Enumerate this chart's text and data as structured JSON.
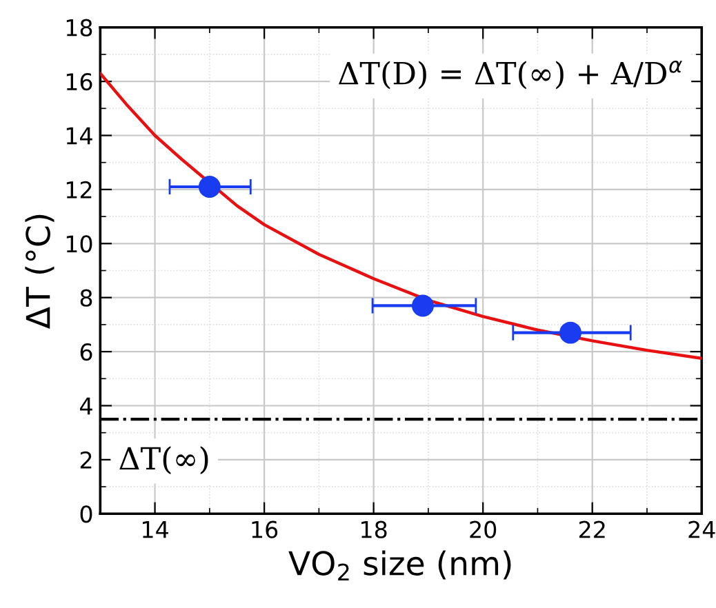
{
  "chart_data": {
    "type": "scatter",
    "xlabel": "VO$_{2}$ size (nm)",
    "ylabel": "ΔT (°C)",
    "xlim": [
      13,
      24
    ],
    "xticks": [
      14,
      16,
      18,
      20,
      22,
      24
    ],
    "ylim": [
      0,
      18
    ],
    "yticks": [
      0,
      2,
      4,
      6,
      8,
      10,
      12,
      14,
      16,
      18
    ],
    "grid": true,
    "series": [
      {
        "type": "line",
        "color": "#e81010",
        "marker": "none",
        "line_style": "solid",
        "x": [
          13,
          13.5,
          14,
          14.5,
          15.5,
          16,
          17,
          18,
          19,
          20,
          21,
          22,
          23,
          24
        ],
        "values": [
          16.3,
          15.1,
          14.0,
          13.1,
          11.4,
          10.7,
          9.6,
          8.7,
          7.9,
          7.3,
          6.8,
          6.4,
          6.05,
          5.75
        ]
      },
      {
        "color": "#1a3cf0",
        "marker": "circle",
        "x": [
          15.0,
          18.9,
          21.6
        ],
        "values": [
          12.1,
          7.7,
          6.7
        ],
        "xerrors": [
          [
            14.27,
            15.75
          ],
          [
            17.98,
            19.87
          ],
          [
            20.55,
            22.7
          ]
        ]
      }
    ],
    "ref_lines": [
      {
        "axis": "y",
        "value": 3.5,
        "label": "ΔT(∞)",
        "color": "#000000",
        "line_style": "dashdot"
      }
    ],
    "annotations": [
      "ΔT(D) = ΔT(∞) + A/D$^{α}$"
    ]
  }
}
